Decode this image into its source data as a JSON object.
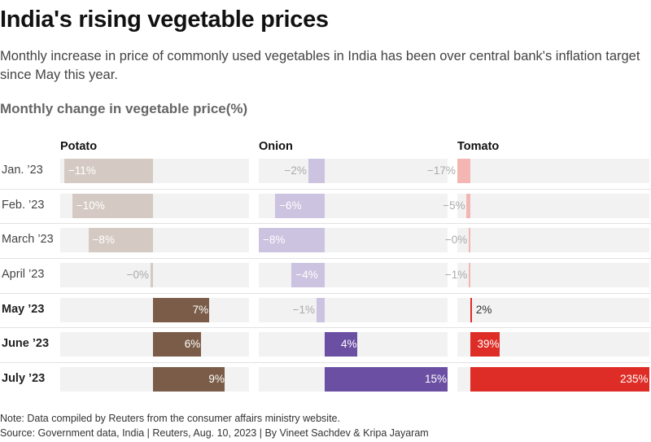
{
  "title": "India's rising vegetable prices",
  "subtitle": "Monthly increase in price of commonly used vegetables in India has been over central bank's inflation target since May this year.",
  "section_title": "Monthly change in vegetable price(%)",
  "note": "Note: Data compiled by Reuters from the consumer affairs ministry website.",
  "source": "Source: Government data, India | Reuters, Aug. 10, 2023 | By Vineet Sachdev & Kripa Jayaram",
  "chart_data": {
    "type": "bar",
    "orientation": "horizontal",
    "categories": [
      "Jan. ’23",
      "Feb. ’23",
      "March ’23",
      "April ’23",
      "May ’23",
      "June ’23",
      "July ’23"
    ],
    "bold_categories": [
      "May ’23",
      "June ’23",
      "July ’23"
    ],
    "series": [
      {
        "name": "Potato",
        "values": [
          -11,
          -10,
          -8,
          -0.3,
          7,
          6,
          9
        ],
        "labels": [
          "−11%",
          "−10%",
          "−8%",
          "−0%",
          "7%",
          "6%",
          "9%"
        ],
        "xlim": [
          -11.5,
          12
        ],
        "colors": {
          "positive": "#7a5c48",
          "negative": "#d5cac3",
          "label_positive": "#ffffff",
          "label_negative": "#aaaaaa"
        }
      },
      {
        "name": "Onion",
        "values": [
          -2,
          -6,
          -8,
          -4,
          -1,
          4,
          15
        ],
        "labels": [
          "−2%",
          "−6%",
          "−8%",
          "−4%",
          "−1%",
          "4%",
          "15%"
        ],
        "xlim": [
          -8,
          15
        ],
        "colors": {
          "positive": "#6b4fa3",
          "negative": "#cbc3df",
          "label_positive": "#ffffff",
          "label_negative": "#aaaaaa"
        }
      },
      {
        "name": "Tomato",
        "values": [
          -17,
          -5,
          -0.3,
          -1,
          2,
          39,
          235
        ],
        "labels": [
          "−17%",
          "−5%",
          "−0%",
          "−1%",
          "2%",
          "39%",
          "235%"
        ],
        "xlim": [
          -17,
          235
        ],
        "colors": {
          "positive": "#de2d26",
          "negative": "#f4b6b3",
          "label_positive": "#ffffff",
          "label_negative": "#aaaaaa"
        }
      }
    ]
  }
}
